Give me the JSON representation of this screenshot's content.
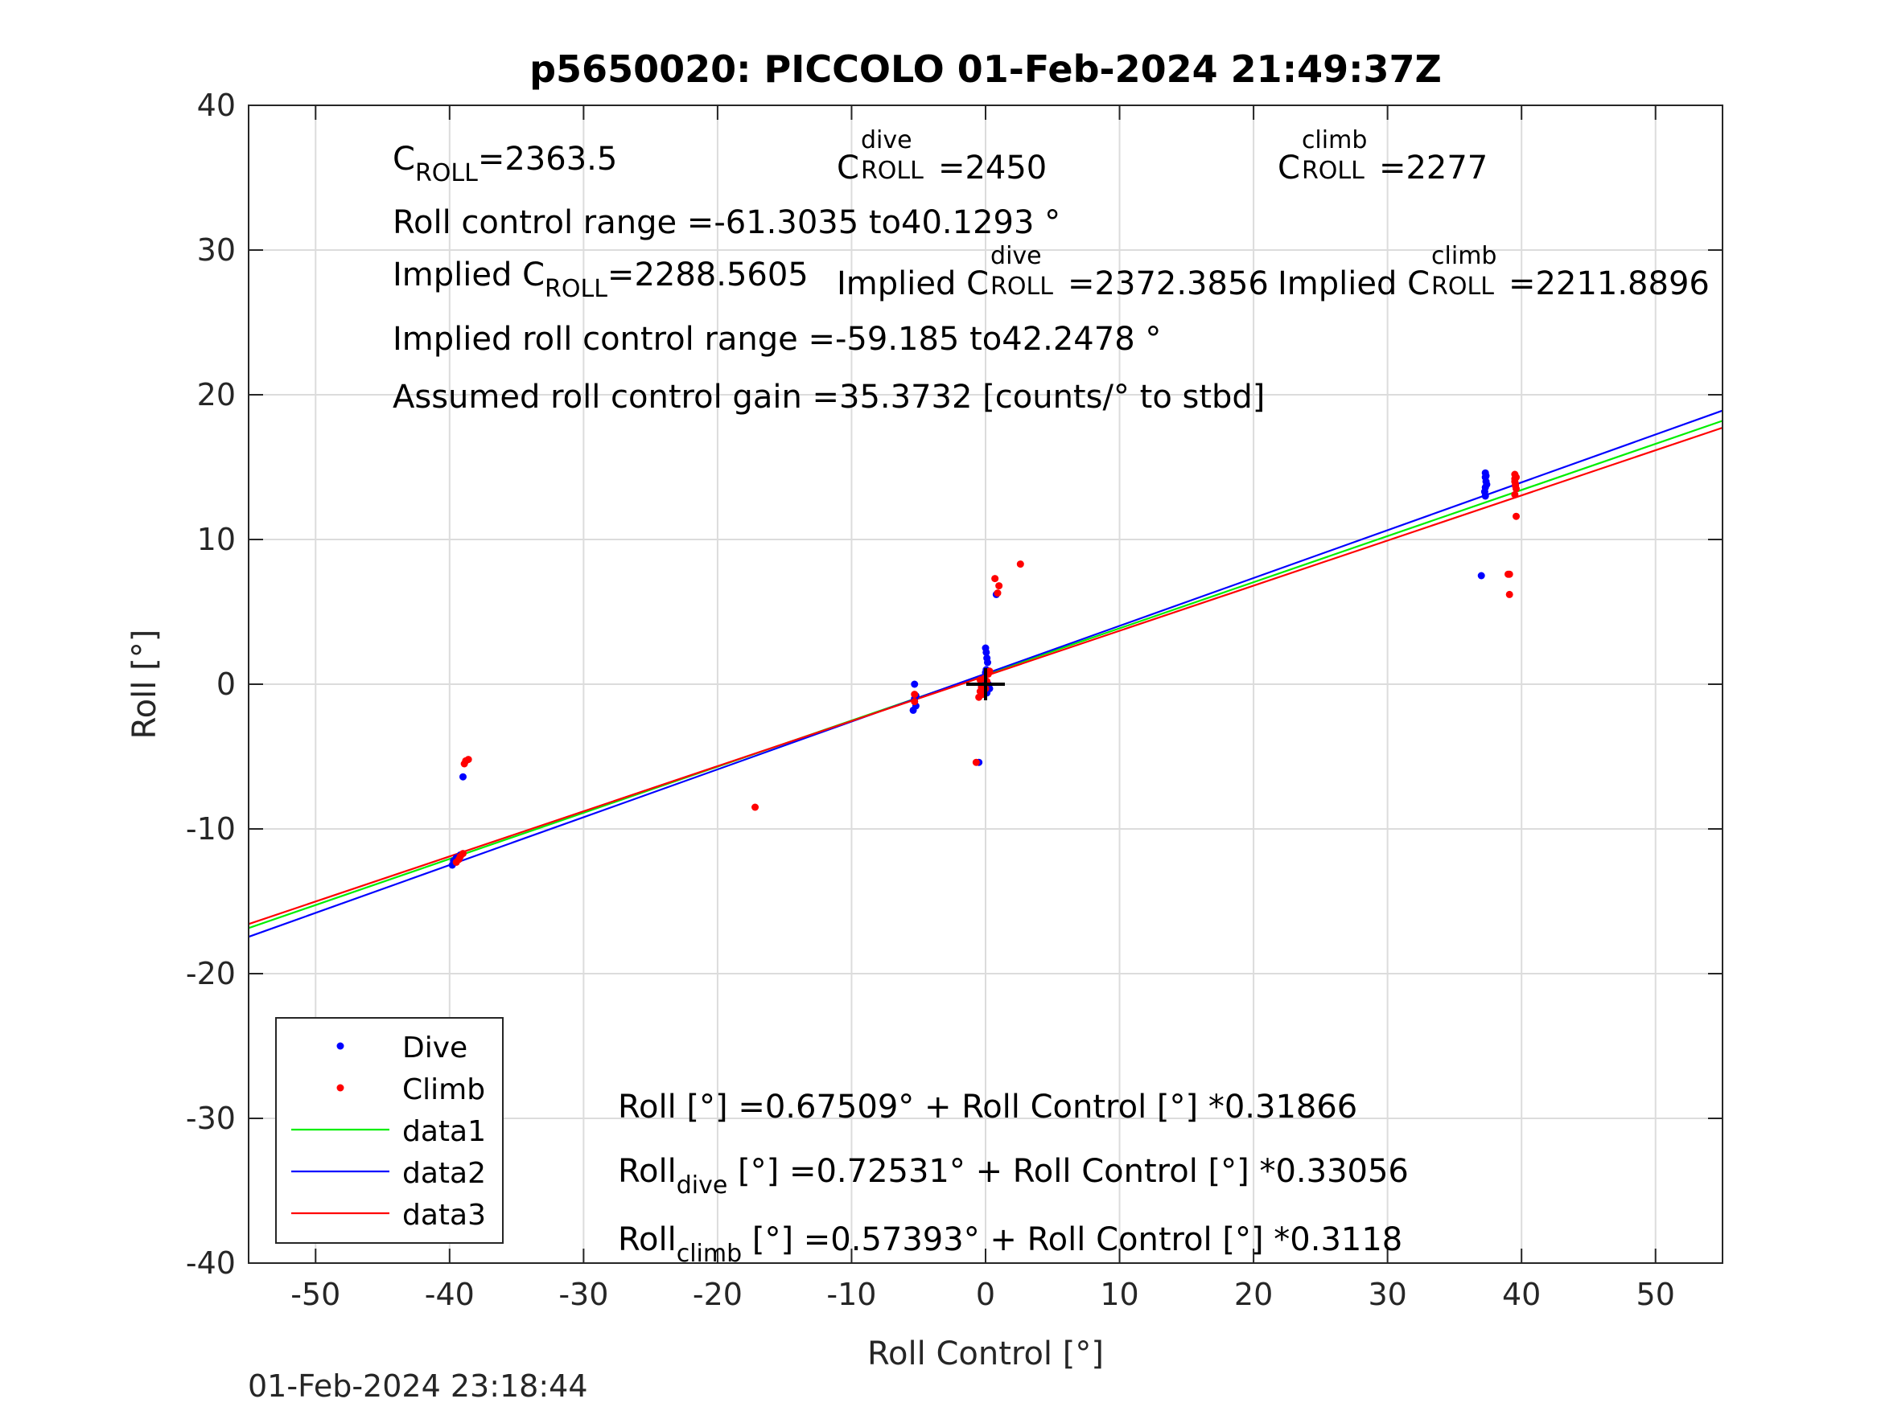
{
  "title": "p5650020: PICCOLO 01-Feb-2024 21:49:37Z",
  "footer_timestamp": "01-Feb-2024 23:18:44",
  "annotations": {
    "c_roll": {
      "main": "C",
      "sub": "ROLL",
      "value": "=2363.5"
    },
    "c_roll_dive": {
      "main": "C",
      "sup": "dive",
      "sub": "ROLL",
      "value": "=2450"
    },
    "c_roll_climb": {
      "main": "C",
      "sup": "climb",
      "sub": "ROLL",
      "value": "=2277"
    },
    "roll_control_range": "Roll control range =-61.3035 to40.1293 °",
    "implied_c_roll": {
      "prefix": "Implied C",
      "sub": "ROLL",
      "value": "=2288.5605"
    },
    "implied_c_roll_dive": {
      "prefix": "Implied C",
      "sup": "dive",
      "sub": "ROLL",
      "value": "=2372.3856"
    },
    "implied_c_roll_climb": {
      "prefix": "Implied C",
      "sup": "climb",
      "sub": "ROLL",
      "value": "=2211.8896"
    },
    "implied_range": "Implied roll control range =-59.185 to42.2478 °",
    "gain": "Assumed roll control gain =35.3732 [counts/° to stbd]",
    "fit_all": "Roll [°] =0.67509° + Roll Control [°] *0.31866",
    "fit_dive": {
      "prefix": "Roll",
      "sub": "dive",
      "rest": " [°] =0.72531° + Roll Control [°] *0.33056"
    },
    "fit_climb": {
      "prefix": "Roll",
      "sub": "climb",
      "rest": " [°] =0.57393° + Roll Control [°] *0.3118"
    }
  },
  "colors": {
    "dive": "#0000ff",
    "climb": "#ff0000",
    "data1": "#00ee00",
    "data2": "#0000ff",
    "data3": "#ff0000",
    "grid": "#dcdcdc",
    "axis": "#262626"
  },
  "chart_data": {
    "type": "scatter",
    "title": "p5650020: PICCOLO 01-Feb-2024 21:49:37Z",
    "xlabel": "Roll Control [°]",
    "ylabel": "Roll [°]",
    "xlim": [
      -55,
      55
    ],
    "ylim": [
      -40,
      40
    ],
    "xticks": [
      -50,
      -40,
      -30,
      -20,
      -10,
      0,
      10,
      20,
      30,
      40,
      50
    ],
    "yticks": [
      -40,
      -30,
      -20,
      -10,
      0,
      10,
      20,
      30,
      40
    ],
    "grid": true,
    "legend_position": "bottom-left",
    "series": [
      {
        "name": "Dive",
        "kind": "points",
        "color": "#0000ff",
        "points": [
          [
            -39.8,
            -12.5
          ],
          [
            -39.7,
            -12.2
          ],
          [
            -39.5,
            -12.0
          ],
          [
            -39.2,
            -11.8
          ],
          [
            -39.0,
            -6.4
          ],
          [
            -5.3,
            0.0
          ],
          [
            -5.3,
            -1.0
          ],
          [
            -5.2,
            -1.5
          ],
          [
            -5.4,
            -1.8
          ],
          [
            -5.2,
            -0.8
          ],
          [
            -0.5,
            -5.4
          ],
          [
            -0.3,
            -0.2
          ],
          [
            -0.2,
            0.4
          ],
          [
            -0.1,
            0.2
          ],
          [
            0.0,
            2.5
          ],
          [
            0.05,
            2.2
          ],
          [
            0.1,
            1.8
          ],
          [
            0.15,
            1.5
          ],
          [
            0.05,
            1.0
          ],
          [
            0.0,
            0.8
          ],
          [
            -0.05,
            0.3
          ],
          [
            0.2,
            0.0
          ],
          [
            0.3,
            -0.3
          ],
          [
            0.1,
            -0.6
          ],
          [
            0.8,
            6.2
          ],
          [
            37.0,
            7.5
          ],
          [
            37.3,
            14.6
          ],
          [
            37.3,
            14.3
          ],
          [
            37.35,
            14.0
          ],
          [
            37.3,
            13.6
          ],
          [
            37.25,
            13.3
          ],
          [
            37.3,
            13.0
          ],
          [
            37.4,
            13.8
          ],
          [
            37.35,
            14.4
          ]
        ]
      },
      {
        "name": "Climb",
        "kind": "points",
        "color": "#ff0000",
        "points": [
          [
            -39.5,
            -12.3
          ],
          [
            -39.2,
            -11.9
          ],
          [
            -39.0,
            -11.7
          ],
          [
            -39.3,
            -12.1
          ],
          [
            -38.8,
            -5.3
          ],
          [
            -38.6,
            -5.2
          ],
          [
            -38.9,
            -5.5
          ],
          [
            -17.2,
            -8.5
          ],
          [
            -5.3,
            -0.7
          ],
          [
            -5.3,
            -1.2
          ],
          [
            -0.7,
            -5.4
          ],
          [
            -0.4,
            -0.5
          ],
          [
            -0.5,
            -0.9
          ],
          [
            -0.3,
            -0.2
          ],
          [
            -0.4,
            0.3
          ],
          [
            -0.2,
            -0.7
          ],
          [
            -0.1,
            0.4
          ],
          [
            0.0,
            -0.3
          ],
          [
            0.1,
            0.2
          ],
          [
            0.2,
            0.7
          ],
          [
            0.3,
            0.9
          ],
          [
            0.7,
            7.3
          ],
          [
            1.0,
            6.8
          ],
          [
            0.9,
            6.3
          ],
          [
            2.6,
            8.3
          ],
          [
            39.0,
            7.6
          ],
          [
            39.1,
            7.6
          ],
          [
            39.1,
            6.2
          ],
          [
            39.5,
            14.5
          ],
          [
            39.5,
            14.2
          ],
          [
            39.55,
            13.8
          ],
          [
            39.6,
            13.5
          ],
          [
            39.5,
            14.0
          ],
          [
            39.6,
            14.3
          ],
          [
            39.5,
            13.1
          ],
          [
            39.6,
            11.6
          ],
          [
            39.55,
            13.7
          ]
        ]
      },
      {
        "name": "data1",
        "kind": "line",
        "color": "#00ee00",
        "intercept": 0.67509,
        "slope": 0.31866
      },
      {
        "name": "data2",
        "kind": "line",
        "color": "#0000ff",
        "intercept": 0.72531,
        "slope": 0.33056
      },
      {
        "name": "data3",
        "kind": "line",
        "color": "#ff0000",
        "intercept": 0.57393,
        "slope": 0.3118
      }
    ],
    "marker": {
      "type": "cross",
      "x": 0,
      "y": 0
    }
  },
  "legend": [
    {
      "label": "Dive",
      "symbol": "dot",
      "color": "#0000ff"
    },
    {
      "label": "Climb",
      "symbol": "dot",
      "color": "#ff0000"
    },
    {
      "label": "data1",
      "symbol": "line",
      "color": "#00ee00"
    },
    {
      "label": "data2",
      "symbol": "line",
      "color": "#0000ff"
    },
    {
      "label": "data3",
      "symbol": "line",
      "color": "#ff0000"
    }
  ]
}
